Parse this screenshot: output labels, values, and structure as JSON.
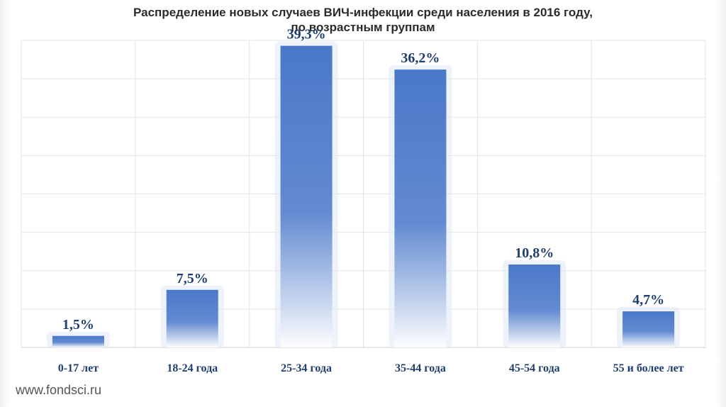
{
  "title_line1": "Распределение новых случаев ВИЧ-инфекции среди населения в 2016 году,",
  "title_line2": "по возрастным группам",
  "watermark": "www.fondsci.ru",
  "colors": {
    "bar_top": "#4a78c9",
    "bar_bottom": "#ffffff",
    "labels": "#1f3e6e",
    "grid": "#e3e3e3"
  },
  "chart_data": {
    "type": "bar",
    "title": "Распределение новых случаев ВИЧ-инфекции среди населения в 2016 году, по возрастным группам",
    "categories": [
      "0-17 лет",
      "18-24 года",
      "25-34 года",
      "35-44 года",
      "45-54 года",
      "55 и более лет"
    ],
    "values": [
      1.5,
      7.5,
      39.3,
      36.2,
      10.8,
      4.7
    ],
    "data_labels": [
      "1,5%",
      "7,5%",
      "39,3%",
      "36,2%",
      "10,8%",
      "4,7%"
    ],
    "ylim": [
      0,
      40
    ],
    "grid": true
  }
}
